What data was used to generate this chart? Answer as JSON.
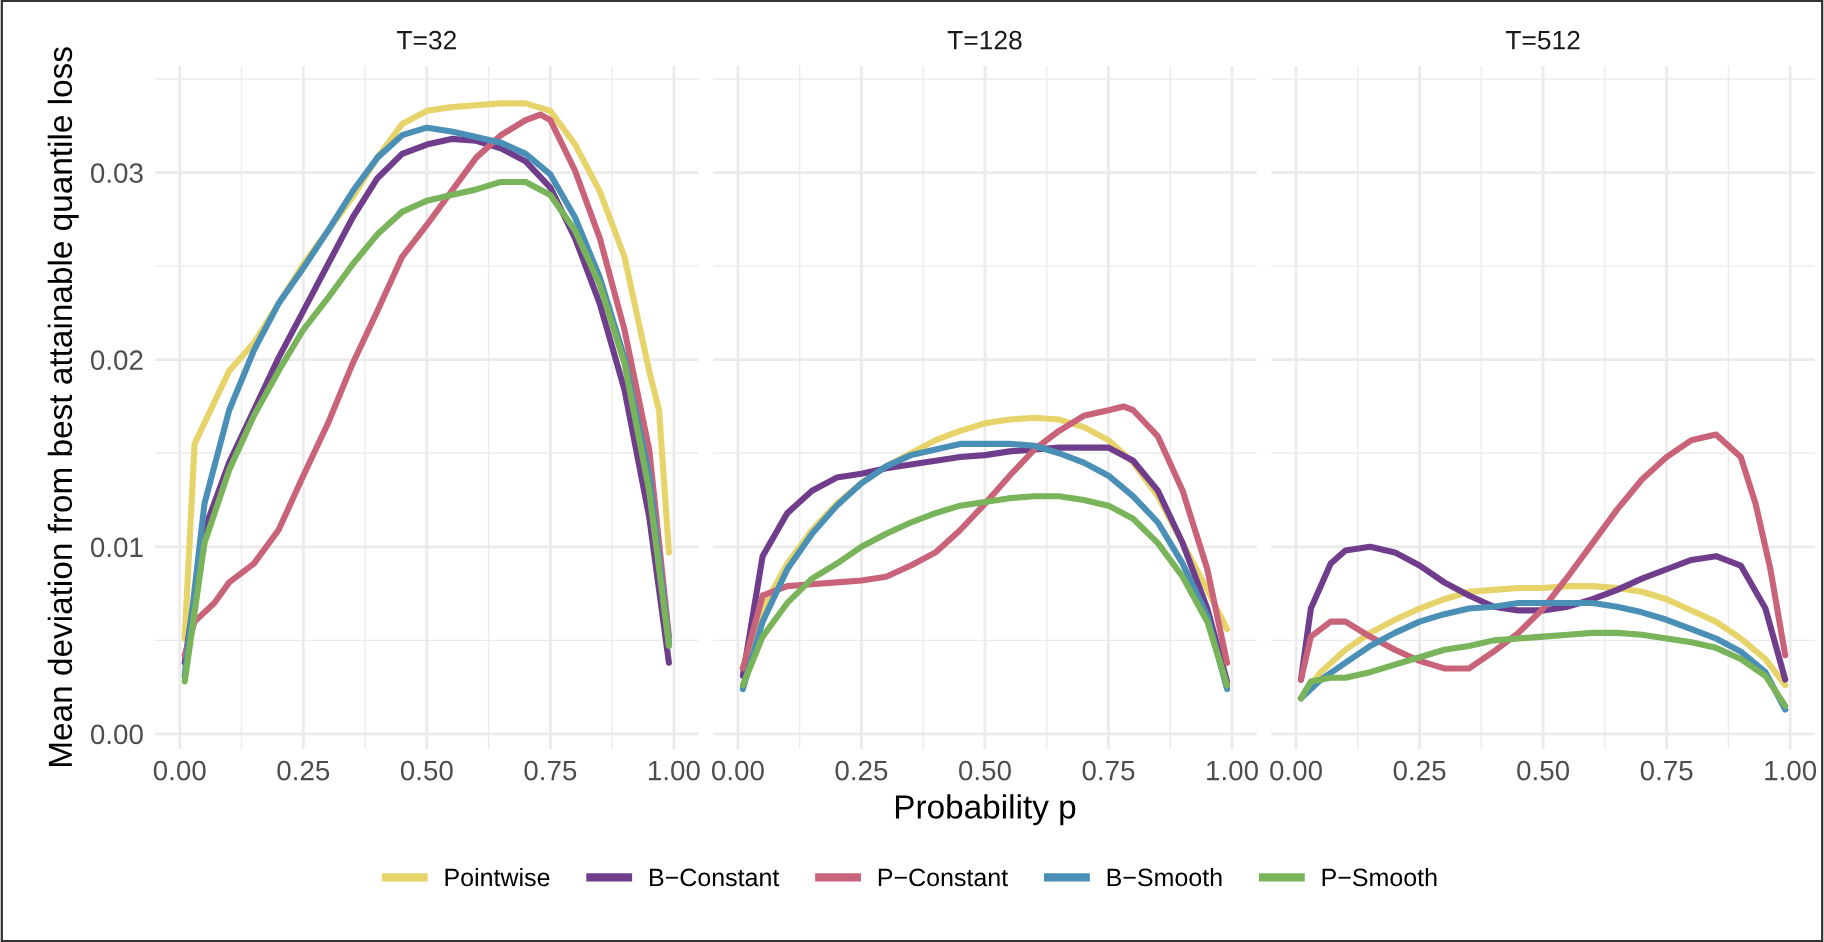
{
  "chart_data": [
    {
      "type": "line",
      "title": "T=32",
      "ylabel": "Mean deviation from best attainable quantile loss",
      "xlim": [
        -0.05,
        1.05
      ],
      "ylim": [
        -0.0008,
        0.0357
      ],
      "xticks": [
        {
          "value": 0,
          "label": "0.00"
        },
        {
          "value": 0.25,
          "label": "0.25"
        },
        {
          "value": 0.5,
          "label": "0.50"
        },
        {
          "value": 0.75,
          "label": "0.75"
        },
        {
          "value": 1,
          "label": "1.00"
        }
      ],
      "yticks": [
        {
          "value": 0,
          "label": "0.00"
        },
        {
          "value": 0.01,
          "label": "0.01"
        },
        {
          "value": 0.02,
          "label": "0.02"
        },
        {
          "value": 0.03,
          "label": "0.03"
        }
      ],
      "grid": true,
      "legend": "bottom",
      "line_style": "solid",
      "marker": "none",
      "series": [
        {
          "name": "Pointwise",
          "color": "#e6d46a",
          "x": [
            0.01,
            0.03,
            0.1,
            0.15,
            0.2,
            0.25,
            0.3,
            0.35,
            0.4,
            0.45,
            0.5,
            0.55,
            0.6,
            0.65,
            0.7,
            0.75,
            0.8,
            0.85,
            0.9,
            0.95,
            0.97,
            0.99
          ],
          "values": [
            0.0051,
            0.0155,
            0.0194,
            0.0209,
            0.023,
            0.0251,
            0.0269,
            0.0287,
            0.0308,
            0.0326,
            0.0333,
            0.0335,
            0.0336,
            0.0337,
            0.0337,
            0.0333,
            0.0315,
            0.029,
            0.0255,
            0.0194,
            0.0173,
            0.0097
          ]
        },
        {
          "name": "B−Constant",
          "color": "#6f3d8c",
          "x": [
            0.01,
            0.05,
            0.1,
            0.15,
            0.2,
            0.25,
            0.3,
            0.35,
            0.4,
            0.45,
            0.5,
            0.55,
            0.6,
            0.65,
            0.7,
            0.75,
            0.8,
            0.85,
            0.9,
            0.95,
            0.99
          ],
          "values": [
            0.0038,
            0.0109,
            0.0145,
            0.0173,
            0.0201,
            0.0226,
            0.0251,
            0.0276,
            0.0297,
            0.031,
            0.0315,
            0.0318,
            0.0317,
            0.0313,
            0.0306,
            0.0292,
            0.0265,
            0.023,
            0.0184,
            0.0116,
            0.0038
          ]
        },
        {
          "name": "P−Constant",
          "color": "#c9637a",
          "x": [
            0.01,
            0.03,
            0.07,
            0.1,
            0.15,
            0.2,
            0.25,
            0.3,
            0.35,
            0.4,
            0.45,
            0.5,
            0.55,
            0.6,
            0.65,
            0.7,
            0.73,
            0.75,
            0.8,
            0.85,
            0.9,
            0.95,
            0.99
          ],
          "values": [
            0.0042,
            0.006,
            0.007,
            0.0081,
            0.0091,
            0.0109,
            0.0138,
            0.0166,
            0.0198,
            0.0226,
            0.0255,
            0.0272,
            0.029,
            0.0308,
            0.032,
            0.0328,
            0.0331,
            0.0328,
            0.0301,
            0.0265,
            0.0216,
            0.0152,
            0.0052
          ]
        },
        {
          "name": "B−Smooth",
          "color": "#4a8fb5",
          "x": [
            0.01,
            0.05,
            0.1,
            0.15,
            0.2,
            0.25,
            0.3,
            0.35,
            0.4,
            0.45,
            0.5,
            0.55,
            0.6,
            0.65,
            0.7,
            0.75,
            0.8,
            0.85,
            0.9,
            0.95,
            0.99
          ],
          "values": [
            0.0031,
            0.0123,
            0.0173,
            0.0205,
            0.023,
            0.0249,
            0.0269,
            0.029,
            0.0308,
            0.032,
            0.0324,
            0.0322,
            0.0319,
            0.0316,
            0.031,
            0.0299,
            0.0276,
            0.0244,
            0.0201,
            0.0138,
            0.0049
          ]
        },
        {
          "name": "P−Smooth",
          "color": "#79b45a",
          "x": [
            0.01,
            0.05,
            0.1,
            0.15,
            0.2,
            0.25,
            0.3,
            0.35,
            0.4,
            0.45,
            0.5,
            0.55,
            0.6,
            0.65,
            0.7,
            0.75,
            0.8,
            0.85,
            0.9,
            0.95,
            0.99
          ],
          "values": [
            0.0028,
            0.0102,
            0.0141,
            0.017,
            0.0194,
            0.0216,
            0.0233,
            0.0251,
            0.0267,
            0.0279,
            0.0285,
            0.0288,
            0.0291,
            0.0295,
            0.0295,
            0.0288,
            0.0269,
            0.024,
            0.0198,
            0.013,
            0.0047
          ]
        }
      ]
    },
    {
      "type": "line",
      "title": "T=128",
      "xlabel": "Probability p",
      "xlim": [
        -0.05,
        1.05
      ],
      "ylim": [
        -0.0008,
        0.0357
      ],
      "xticks": [
        {
          "value": 0,
          "label": "0.00"
        },
        {
          "value": 0.25,
          "label": "0.25"
        },
        {
          "value": 0.5,
          "label": "0.50"
        },
        {
          "value": 0.75,
          "label": "0.75"
        },
        {
          "value": 1,
          "label": "1.00"
        }
      ],
      "yticks": [
        {
          "value": 0,
          "label": null
        },
        {
          "value": 0.01,
          "label": null
        },
        {
          "value": 0.02,
          "label": null
        },
        {
          "value": 0.03,
          "label": null
        }
      ],
      "tick_labels": "x",
      "grid": true,
      "line_style": "solid",
      "marker": "none",
      "series": [
        {
          "name": "Pointwise",
          "color": "#e6d46a",
          "x": [
            0.01,
            0.05,
            0.1,
            0.15,
            0.2,
            0.25,
            0.3,
            0.35,
            0.4,
            0.45,
            0.5,
            0.55,
            0.6,
            0.65,
            0.7,
            0.75,
            0.8,
            0.85,
            0.9,
            0.95,
            0.99
          ],
          "values": [
            0.0035,
            0.0067,
            0.0091,
            0.0109,
            0.0123,
            0.0134,
            0.0143,
            0.015,
            0.0157,
            0.0162,
            0.0166,
            0.0168,
            0.0169,
            0.0168,
            0.0164,
            0.0157,
            0.0145,
            0.0127,
            0.0102,
            0.0077,
            0.0056
          ]
        },
        {
          "name": "B−Constant",
          "color": "#6f3d8c",
          "x": [
            0.01,
            0.05,
            0.1,
            0.15,
            0.2,
            0.25,
            0.3,
            0.35,
            0.4,
            0.45,
            0.5,
            0.55,
            0.6,
            0.65,
            0.7,
            0.75,
            0.8,
            0.85,
            0.9,
            0.95,
            0.99
          ],
          "values": [
            0.0031,
            0.0095,
            0.0118,
            0.013,
            0.0137,
            0.0139,
            0.0142,
            0.0144,
            0.0146,
            0.0148,
            0.0149,
            0.0151,
            0.0152,
            0.0153,
            0.0153,
            0.0153,
            0.0146,
            0.013,
            0.0102,
            0.0067,
            0.0028
          ]
        },
        {
          "name": "P−Constant",
          "color": "#c9637a",
          "x": [
            0.01,
            0.05,
            0.1,
            0.15,
            0.2,
            0.25,
            0.3,
            0.35,
            0.4,
            0.45,
            0.5,
            0.55,
            0.6,
            0.65,
            0.7,
            0.75,
            0.78,
            0.8,
            0.85,
            0.9,
            0.95,
            0.99
          ],
          "values": [
            0.0035,
            0.0074,
            0.0079,
            0.008,
            0.0081,
            0.0082,
            0.0084,
            0.009,
            0.0097,
            0.0109,
            0.0123,
            0.0138,
            0.0152,
            0.0162,
            0.017,
            0.0173,
            0.0175,
            0.0173,
            0.0159,
            0.013,
            0.0088,
            0.0038
          ]
        },
        {
          "name": "B−Smooth",
          "color": "#4a8fb5",
          "x": [
            0.01,
            0.05,
            0.1,
            0.15,
            0.2,
            0.25,
            0.3,
            0.35,
            0.4,
            0.45,
            0.5,
            0.55,
            0.6,
            0.65,
            0.7,
            0.75,
            0.8,
            0.85,
            0.9,
            0.95,
            0.99
          ],
          "values": [
            0.0024,
            0.006,
            0.0088,
            0.0107,
            0.0122,
            0.0134,
            0.0143,
            0.0149,
            0.0152,
            0.0155,
            0.0155,
            0.0155,
            0.0154,
            0.015,
            0.0145,
            0.0138,
            0.0127,
            0.0113,
            0.0091,
            0.0063,
            0.0024
          ]
        },
        {
          "name": "P−Smooth",
          "color": "#79b45a",
          "x": [
            0.01,
            0.05,
            0.1,
            0.15,
            0.2,
            0.25,
            0.3,
            0.35,
            0.4,
            0.45,
            0.5,
            0.55,
            0.6,
            0.65,
            0.7,
            0.75,
            0.8,
            0.85,
            0.9,
            0.95,
            0.99
          ],
          "values": [
            0.0026,
            0.0052,
            0.007,
            0.0083,
            0.0091,
            0.01,
            0.0107,
            0.0113,
            0.0118,
            0.0122,
            0.0124,
            0.0126,
            0.0127,
            0.0127,
            0.0125,
            0.0122,
            0.0115,
            0.0102,
            0.0084,
            0.006,
            0.0026
          ]
        }
      ]
    },
    {
      "type": "line",
      "title": "T=512",
      "xlim": [
        -0.05,
        1.05
      ],
      "ylim": [
        -0.0008,
        0.0357
      ],
      "xticks": [
        {
          "value": 0,
          "label": "0.00"
        },
        {
          "value": 0.25,
          "label": "0.25"
        },
        {
          "value": 0.5,
          "label": "0.50"
        },
        {
          "value": 0.75,
          "label": "0.75"
        },
        {
          "value": 1,
          "label": "1.00"
        }
      ],
      "yticks": [
        {
          "value": 0,
          "label": null
        },
        {
          "value": 0.01,
          "label": null
        },
        {
          "value": 0.02,
          "label": null
        },
        {
          "value": 0.03,
          "label": null
        }
      ],
      "tick_labels": "x",
      "grid": true,
      "line_style": "solid",
      "marker": "none",
      "series": [
        {
          "name": "Pointwise",
          "color": "#e6d46a",
          "x": [
            0.01,
            0.05,
            0.1,
            0.15,
            0.2,
            0.25,
            0.3,
            0.35,
            0.4,
            0.45,
            0.5,
            0.55,
            0.6,
            0.65,
            0.7,
            0.75,
            0.8,
            0.85,
            0.9,
            0.95,
            0.99
          ],
          "values": [
            0.0019,
            0.0033,
            0.0045,
            0.0054,
            0.0061,
            0.0067,
            0.0072,
            0.0076,
            0.0077,
            0.0078,
            0.0078,
            0.0079,
            0.0079,
            0.0078,
            0.0076,
            0.0072,
            0.0066,
            0.006,
            0.0051,
            0.004,
            0.0026
          ]
        },
        {
          "name": "B−Constant",
          "color": "#6f3d8c",
          "x": [
            0.01,
            0.03,
            0.07,
            0.1,
            0.15,
            0.2,
            0.25,
            0.3,
            0.35,
            0.4,
            0.45,
            0.5,
            0.55,
            0.6,
            0.65,
            0.7,
            0.75,
            0.8,
            0.85,
            0.9,
            0.95,
            0.99
          ],
          "values": [
            0.0029,
            0.0067,
            0.0091,
            0.0098,
            0.01,
            0.0097,
            0.009,
            0.0081,
            0.0074,
            0.0068,
            0.0066,
            0.0066,
            0.0068,
            0.0072,
            0.0077,
            0.0083,
            0.0088,
            0.0093,
            0.0095,
            0.009,
            0.0067,
            0.0029
          ]
        },
        {
          "name": "P−Constant",
          "color": "#c9637a",
          "x": [
            0.01,
            0.03,
            0.07,
            0.1,
            0.15,
            0.2,
            0.25,
            0.3,
            0.35,
            0.4,
            0.45,
            0.5,
            0.55,
            0.6,
            0.65,
            0.7,
            0.75,
            0.8,
            0.85,
            0.9,
            0.93,
            0.96,
            0.99
          ],
          "values": [
            0.0029,
            0.0052,
            0.006,
            0.006,
            0.0052,
            0.0045,
            0.0039,
            0.0035,
            0.0035,
            0.0044,
            0.0054,
            0.0067,
            0.0084,
            0.0102,
            0.012,
            0.0136,
            0.0148,
            0.0157,
            0.016,
            0.0148,
            0.0123,
            0.0088,
            0.0042
          ]
        },
        {
          "name": "B−Smooth",
          "color": "#4a8fb5",
          "x": [
            0.01,
            0.05,
            0.1,
            0.15,
            0.2,
            0.25,
            0.3,
            0.35,
            0.4,
            0.45,
            0.5,
            0.55,
            0.6,
            0.65,
            0.7,
            0.75,
            0.8,
            0.85,
            0.9,
            0.95,
            0.99
          ],
          "values": [
            0.0019,
            0.0029,
            0.0038,
            0.0047,
            0.0054,
            0.006,
            0.0064,
            0.0067,
            0.0068,
            0.007,
            0.007,
            0.007,
            0.007,
            0.0068,
            0.0065,
            0.0061,
            0.0056,
            0.0051,
            0.0044,
            0.0033,
            0.0013
          ]
        },
        {
          "name": "P−Smooth",
          "color": "#79b45a",
          "x": [
            0.01,
            0.03,
            0.07,
            0.1,
            0.15,
            0.2,
            0.25,
            0.3,
            0.35,
            0.4,
            0.45,
            0.5,
            0.55,
            0.6,
            0.65,
            0.7,
            0.75,
            0.8,
            0.85,
            0.9,
            0.95,
            0.99
          ],
          "values": [
            0.0019,
            0.0028,
            0.003,
            0.003,
            0.0033,
            0.0037,
            0.0041,
            0.0045,
            0.0047,
            0.005,
            0.0051,
            0.0052,
            0.0053,
            0.0054,
            0.0054,
            0.0053,
            0.0051,
            0.0049,
            0.0046,
            0.004,
            0.0031,
            0.0015
          ]
        }
      ]
    }
  ]
}
